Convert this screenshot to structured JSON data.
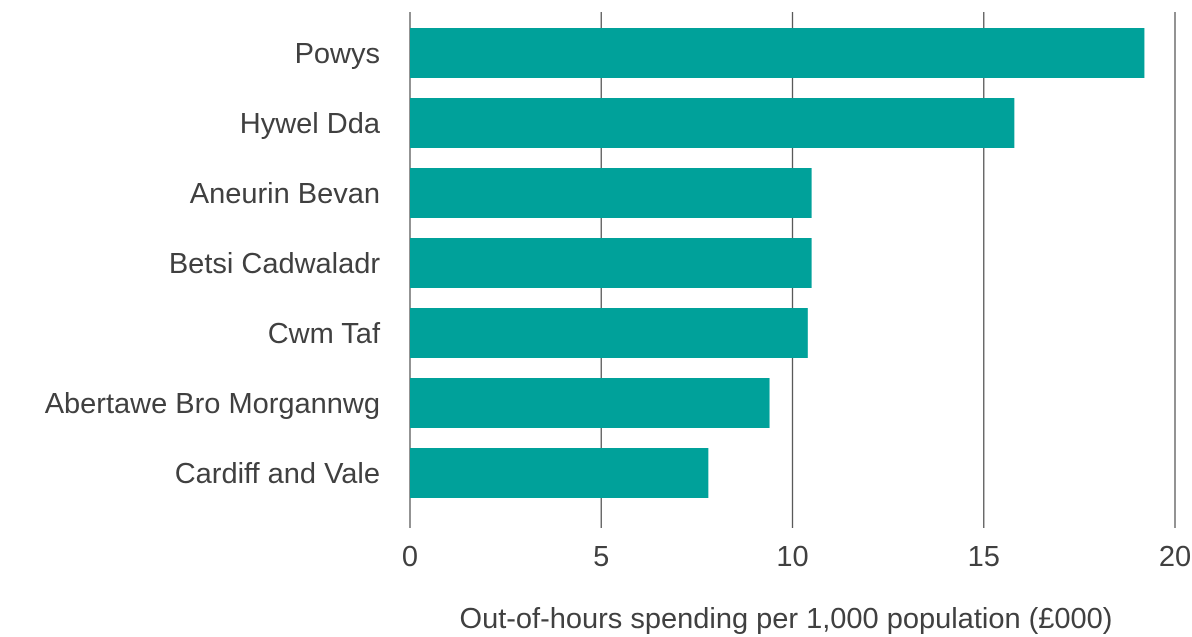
{
  "chart_data": {
    "type": "bar",
    "orientation": "horizontal",
    "categories": [
      "Powys",
      "Hywel Dda",
      "Aneurin Bevan",
      "Betsi Cadwaladr",
      "Cwm Taf",
      "Abertawe Bro Morgannwg",
      "Cardiff and Vale"
    ],
    "values": [
      19.2,
      15.8,
      10.5,
      10.5,
      10.4,
      9.4,
      7.8
    ],
    "xlabel": "Out-of-hours spending per 1,000 population (£000)",
    "ylabel": "",
    "xlim": [
      0,
      20
    ],
    "xticks": [
      0,
      5,
      10,
      15,
      20
    ],
    "xtick_labels": [
      "0",
      "5",
      "10",
      "15",
      "20"
    ],
    "grid": "vertical",
    "legend": "none",
    "bar_color": "#00A19A",
    "grid_color": "#595959",
    "text_color": "#404040"
  }
}
